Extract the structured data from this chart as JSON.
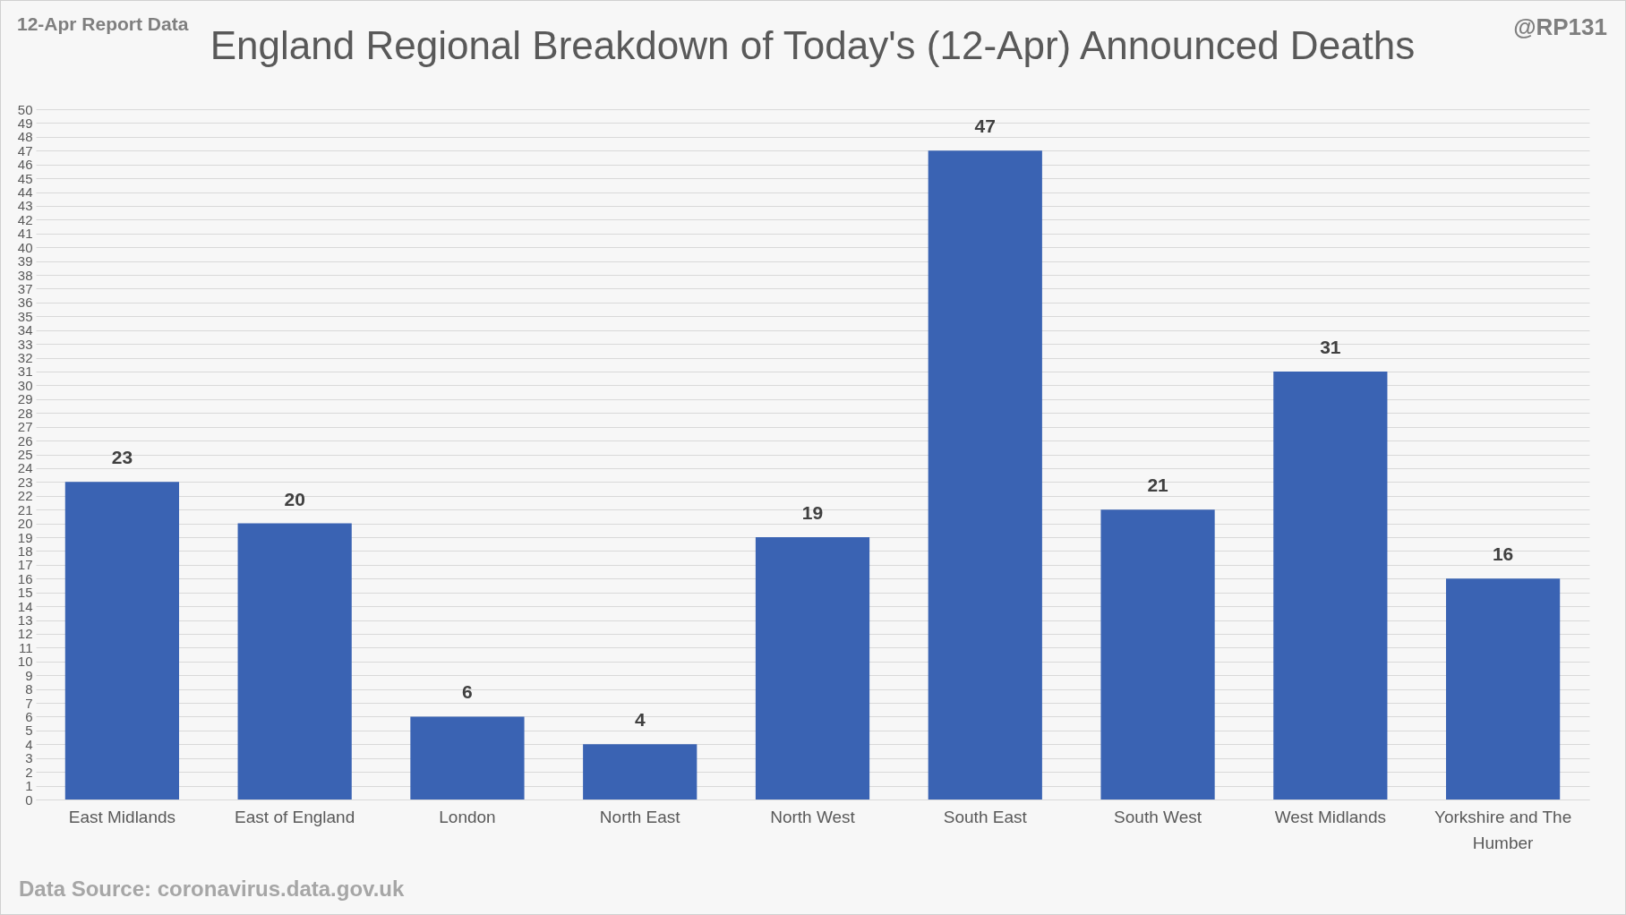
{
  "chart_data": {
    "type": "bar",
    "title": "England Regional Breakdown of Today's (12-Apr) Announced Deaths",
    "categories": [
      "East Midlands",
      "East of England",
      "London",
      "North East",
      "North West",
      "South East",
      "South West",
      "West Midlands",
      "Yorkshire and The Humber"
    ],
    "values": [
      23,
      20,
      6,
      4,
      19,
      47,
      21,
      31,
      16
    ],
    "color": "#3a63b3",
    "ylim": [
      0,
      50
    ],
    "yticks": [
      0,
      1,
      2,
      3,
      4,
      5,
      6,
      7,
      8,
      9,
      10,
      11,
      12,
      13,
      14,
      15,
      16,
      17,
      18,
      19,
      20,
      21,
      22,
      23,
      24,
      25,
      26,
      27,
      28,
      29,
      30,
      31,
      32,
      33,
      34,
      35,
      36,
      37,
      38,
      39,
      40,
      41,
      42,
      43,
      44,
      45,
      46,
      47,
      48,
      49,
      50
    ],
    "grid": true,
    "data_labels": true,
    "annotations": [
      "12-Apr Report Data",
      "@RP131",
      "Data Source: coronavirus.data.gov.uk"
    ]
  }
}
